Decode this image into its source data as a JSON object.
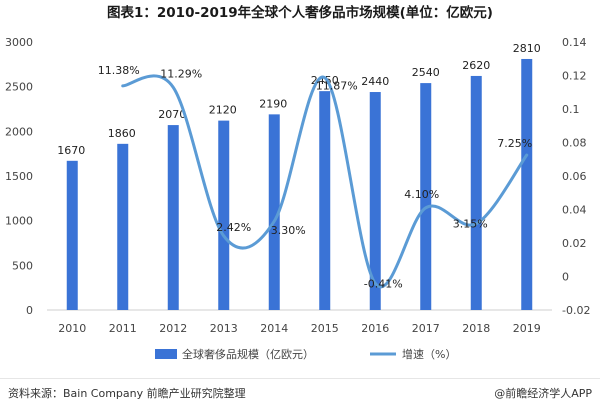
{
  "title": "图表1：2010-2019年全球个人奢侈品市场规模(单位：亿欧元)",
  "footer": {
    "source": "资料来源：Bain Company 前瞻产业研究院整理",
    "brand": "@前瞻经济学人APP"
  },
  "colors": {
    "bar": "#3a73d6",
    "line": "#5b9bd5",
    "axis_text": "#444444",
    "label_text": "#222222"
  },
  "chart_data": {
    "type": "bar+line",
    "categories": [
      "2010",
      "2011",
      "2012",
      "2013",
      "2014",
      "2015",
      "2016",
      "2017",
      "2018",
      "2019"
    ],
    "series": [
      {
        "name": "全球奢侈品规模（亿欧元）",
        "type": "bar",
        "axis": "left",
        "values": [
          1670,
          1860,
          2070,
          2120,
          2190,
          2450,
          2440,
          2540,
          2620,
          2810
        ],
        "labels": [
          "1670",
          "1860",
          "2070",
          "2120",
          "2190",
          "2450",
          "2440",
          "2540",
          "2620",
          "2810"
        ]
      },
      {
        "name": "增速（%）",
        "type": "line",
        "smooth": true,
        "axis": "right",
        "values": [
          null,
          0.1138,
          0.1129,
          0.0242,
          0.033,
          0.1187,
          -0.0041,
          0.041,
          0.0315,
          0.0725
        ],
        "labels": [
          "",
          "11.38%",
          "11.29%",
          "2.42%",
          "3.30%",
          "11.87%",
          "-0.41%",
          "4.10%",
          "3.15%",
          "7.25%"
        ]
      }
    ],
    "y_left": {
      "min": 0,
      "max": 3000,
      "ticks": [
        "0",
        "500",
        "1000",
        "1500",
        "2000",
        "2500",
        "3000"
      ]
    },
    "y_right": {
      "min": -0.02,
      "max": 0.14,
      "ticks": [
        "-0.02",
        "0",
        "0.02",
        "0.04",
        "0.06",
        "0.08",
        "0.1",
        "0.12",
        "0.14"
      ]
    },
    "grid": false,
    "legend": "bottom"
  }
}
